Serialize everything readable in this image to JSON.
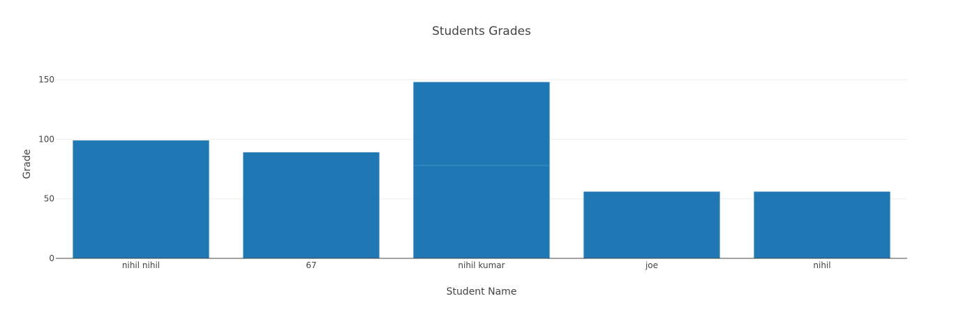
{
  "chart_data": {
    "type": "bar",
    "title": "Students Grades",
    "xlabel": "Student Name",
    "ylabel": "Grade",
    "categories": [
      "nihil nihil",
      "67",
      "nihil kumar",
      "joe",
      "nihil"
    ],
    "segments": [
      [
        99
      ],
      [
        89
      ],
      [
        78,
        70
      ],
      [
        56
      ],
      [
        56
      ]
    ],
    "values": [
      99,
      89,
      148,
      56,
      56
    ],
    "ylim": [
      0,
      170
    ],
    "yticks": [
      0,
      50,
      100,
      150
    ],
    "grid": true,
    "legend": "none",
    "bar_color": "#1f77b4",
    "grid_color": "#eeeeee",
    "axis_color": "#444444"
  }
}
